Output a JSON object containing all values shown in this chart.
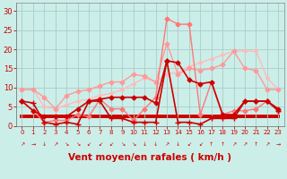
{
  "x": [
    0,
    1,
    2,
    3,
    4,
    5,
    6,
    7,
    8,
    9,
    10,
    11,
    12,
    13,
    14,
    15,
    16,
    17,
    18,
    19,
    20,
    21,
    22,
    23
  ],
  "series": [
    {
      "y": [
        6.5,
        6.0,
        1.0,
        0.5,
        1.0,
        0.5,
        6.5,
        6.5,
        2.0,
        2.0,
        1.0,
        1.0,
        1.0,
        17.0,
        1.0,
        1.0,
        0.5,
        2.0,
        2.0,
        2.0,
        6.5,
        6.5,
        6.5,
        4.0
      ],
      "color": "#cc0000",
      "linewidth": 1.2,
      "marker": "+",
      "markersize": 4,
      "zorder": 6
    },
    {
      "y": [
        6.5,
        4.0,
        2.5,
        2.5,
        2.5,
        4.5,
        6.5,
        7.0,
        7.5,
        7.5,
        7.5,
        7.5,
        6.0,
        17.0,
        16.5,
        12.0,
        11.0,
        11.5,
        3.0,
        3.0,
        6.5,
        6.5,
        6.5,
        4.5
      ],
      "color": "#cc0000",
      "linewidth": 1.2,
      "marker": "D",
      "markersize": 2.5,
      "zorder": 5
    },
    {
      "y": [
        9.5,
        9.5,
        7.5,
        4.5,
        8.0,
        9.0,
        9.5,
        10.5,
        11.5,
        11.5,
        13.5,
        13.0,
        11.5,
        21.5,
        13.5,
        15.0,
        14.5,
        15.0,
        16.0,
        19.5,
        15.0,
        14.5,
        9.5,
        9.5
      ],
      "color": "#ff9999",
      "linewidth": 1.0,
      "marker": "D",
      "markersize": 2.5,
      "zorder": 3
    },
    {
      "y": [
        6.5,
        4.0,
        1.0,
        1.5,
        1.5,
        3.0,
        2.5,
        7.0,
        4.5,
        4.5,
        1.5,
        4.5,
        7.5,
        28.0,
        26.5,
        26.5,
        3.0,
        11.5,
        3.0,
        4.0,
        4.0,
        4.5,
        6.5,
        4.0
      ],
      "color": "#ff7777",
      "linewidth": 1.0,
      "marker": "D",
      "markersize": 2.5,
      "zorder": 4
    },
    {
      "y": [
        9.5,
        9.5,
        5.0,
        4.5,
        5.5,
        6.5,
        7.0,
        8.0,
        8.5,
        9.5,
        11.0,
        12.5,
        11.5,
        13.5,
        14.0,
        15.5,
        16.5,
        17.5,
        18.5,
        19.5,
        19.5,
        19.5,
        12.5,
        9.5
      ],
      "color": "#ffbbbb",
      "linewidth": 1.0,
      "marker": "D",
      "markersize": 2.0,
      "zorder": 2
    },
    {
      "y": [
        2.5,
        2.5,
        2.5,
        2.5,
        2.5,
        2.5,
        2.5,
        2.5,
        2.5,
        2.5,
        2.5,
        2.5,
        2.5,
        2.5,
        2.5,
        2.5,
        2.5,
        2.5,
        2.5,
        2.5,
        2.5,
        2.5,
        2.5,
        2.5
      ],
      "color": "#cc0000",
      "linewidth": 2.8,
      "marker": null,
      "markersize": 0,
      "zorder": 1
    }
  ],
  "arrows": [
    "↗",
    "→",
    "↓",
    "↗",
    "↘",
    "↘",
    "↙",
    "↙",
    "↙",
    "↘",
    "↘",
    "↓",
    "↓",
    "↗",
    "↓",
    "↙",
    "↙",
    "↑",
    "↑",
    "↗",
    "↗",
    "↑",
    "↗",
    "→"
  ],
  "xlabel": "Vent moyen/en rafales ( km/h )",
  "xlim": [
    -0.5,
    23.5
  ],
  "ylim": [
    0,
    32
  ],
  "yticks": [
    0,
    5,
    10,
    15,
    20,
    25,
    30
  ],
  "xticks": [
    0,
    1,
    2,
    3,
    4,
    5,
    6,
    7,
    8,
    9,
    10,
    11,
    12,
    13,
    14,
    15,
    16,
    17,
    18,
    19,
    20,
    21,
    22,
    23
  ],
  "bg_color": "#cceee8",
  "grid_color": "#aacccc",
  "tick_color": "#cc0000",
  "label_color": "#cc0000",
  "xlabel_fontsize": 7.5,
  "tick_fontsize": 5.5
}
